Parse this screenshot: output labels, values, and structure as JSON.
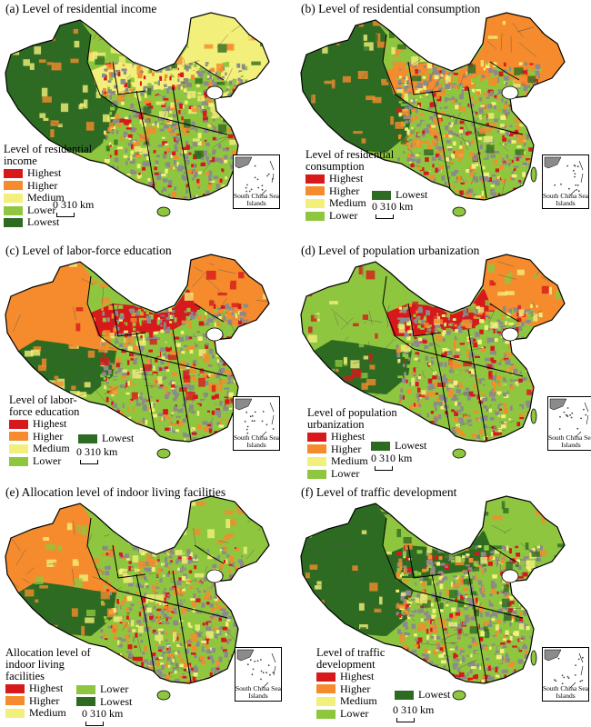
{
  "colors": {
    "highest": "#d7191c",
    "higher": "#f58b2d",
    "medium": "#f2f07a",
    "lower": "#8fc63f",
    "lowest": "#2e6b22",
    "urban_gray": "#8b8b8b"
  },
  "scale_text": "0 310 km",
  "inset_label": "South China Sea Islands",
  "panels": [
    {
      "title": "(a) Level of residential income",
      "legend_title": "Level of residential income",
      "legend_items": [
        "Highest",
        "Higher",
        "Medium",
        "Lower",
        "Lowest"
      ],
      "extra_items": [],
      "west": "lowest",
      "north": "medium",
      "northeast": "medium",
      "center": "lower"
    },
    {
      "title": "(b) Level of residential consumption",
      "legend_title": "Level of residential consumption",
      "legend_items": [
        "Highest",
        "Higher",
        "Medium",
        "Lower"
      ],
      "extra_items": [
        "Lowest"
      ],
      "west": "lowest",
      "north": "higher",
      "northeast": "higher",
      "center": "lower"
    },
    {
      "title": "(c) Level of labor-force education",
      "legend_title": "Level of labor-force education",
      "legend_items": [
        "Highest",
        "Higher",
        "Medium",
        "Lower"
      ],
      "extra_items": [
        "Lowest"
      ],
      "west": "higher",
      "north": "highest",
      "northeast": "higher",
      "center": "lower"
    },
    {
      "title": "(d) Level of population urbanization",
      "legend_title": "Level of population urbanization",
      "legend_items": [
        "Highest",
        "Higher",
        "Medium",
        "Lower"
      ],
      "extra_items": [
        "Lowest"
      ],
      "west": "lower",
      "north": "highest",
      "northeast": "higher",
      "center": "lower"
    },
    {
      "title": "(e) Allocation level of indoor living facilities",
      "legend_title": "Allocation level of indoor living facilities",
      "legend_items": [
        "Highest",
        "Higher",
        "Medium"
      ],
      "extra_items": [
        "Lower",
        "Lowest"
      ],
      "west": "higher",
      "north": "lower",
      "northeast": "lower",
      "center": "lower"
    },
    {
      "title": "(f) Level of traffic development",
      "legend_title": "Level of traffic development",
      "legend_items": [
        "Highest",
        "Higher",
        "Medium",
        "Lower"
      ],
      "extra_items": [
        "Lowest"
      ],
      "west": "lowest",
      "north": "lowest",
      "northeast": "lower",
      "center": "lower"
    }
  ]
}
